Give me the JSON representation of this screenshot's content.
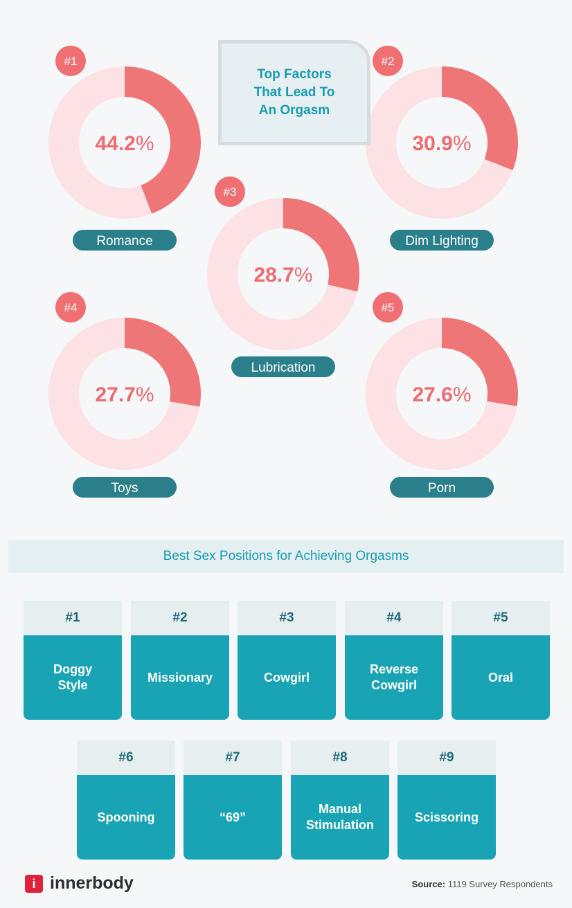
{
  "title": "Top Factors That Lead To An Orgasm",
  "percent_sign": "%",
  "factors": [
    {
      "rank": "#1",
      "label": "Romance",
      "value": 44.2
    },
    {
      "rank": "#2",
      "label": "Dim Lighting",
      "value": 30.9
    },
    {
      "rank": "#3",
      "label": "Lubrication",
      "value": 28.7
    },
    {
      "rank": "#4",
      "label": "Toys",
      "value": 27.7
    },
    {
      "rank": "#5",
      "label": "Porn",
      "value": 27.6
    }
  ],
  "positions_title": "Best Sex Positions for Achieving Orgasms",
  "positions": [
    {
      "rank": "#1",
      "label": "Doggy Style"
    },
    {
      "rank": "#2",
      "label": "Missionary"
    },
    {
      "rank": "#3",
      "label": "Cowgirl"
    },
    {
      "rank": "#4",
      "label": "Reverse Cowgirl"
    },
    {
      "rank": "#5",
      "label": "Oral"
    },
    {
      "rank": "#6",
      "label": "Spooning"
    },
    {
      "rank": "#7",
      "label": "“69”"
    },
    {
      "rank": "#8",
      "label": "Manual Stimulation"
    },
    {
      "rank": "#9",
      "label": "Scissoring"
    }
  ],
  "brand": "innerbody",
  "source_label": "Source:",
  "source": "1119 Survey Respondents"
}
